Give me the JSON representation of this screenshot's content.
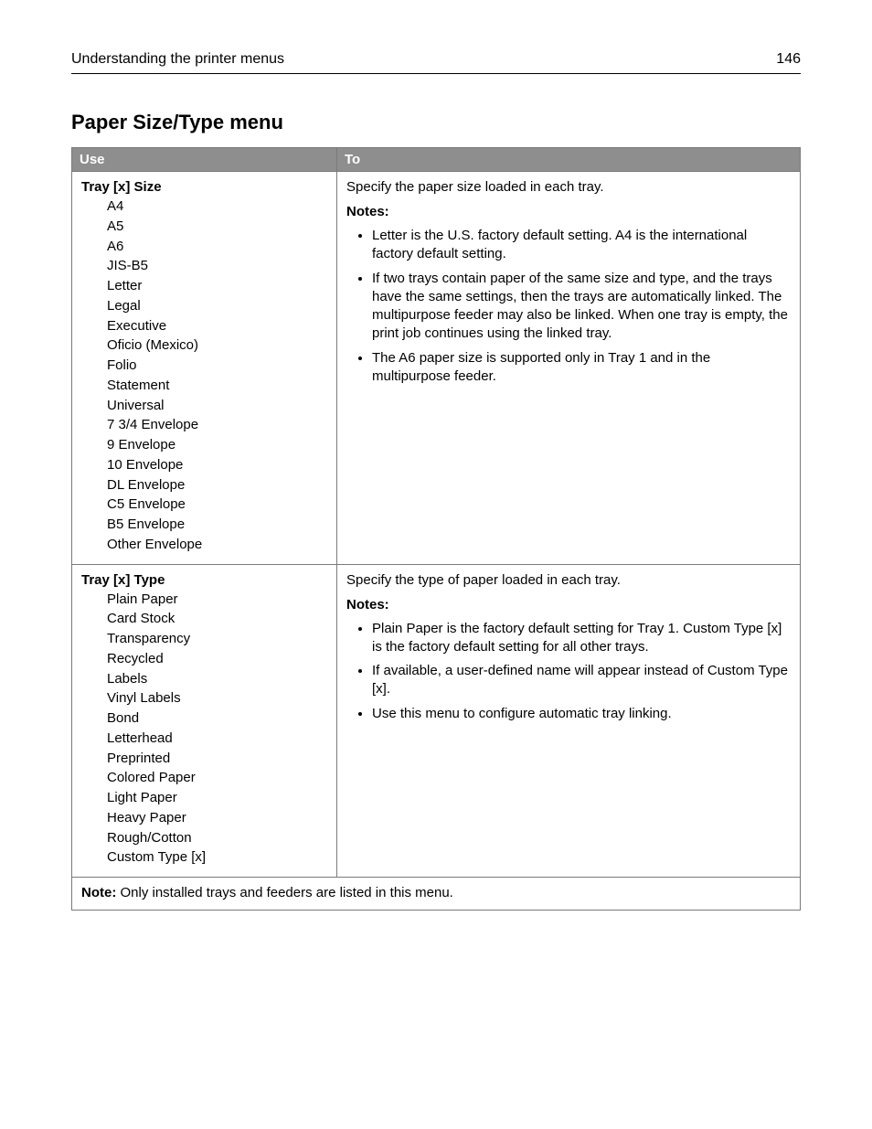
{
  "header": {
    "title": "Understanding the printer menus",
    "page_number": "146"
  },
  "section": {
    "title": "Paper Size/Type menu"
  },
  "table": {
    "columns": {
      "use": "Use",
      "to": "To"
    },
    "rows": [
      {
        "use_heading": "Tray [x] Size",
        "options": [
          "A4",
          "A5",
          "A6",
          "JIS-B5",
          "Letter",
          "Legal",
          "Executive",
          "Oficio (Mexico)",
          "Folio",
          "Statement",
          "Universal",
          "7 3/4 Envelope",
          "9 Envelope",
          "10 Envelope",
          "DL Envelope",
          "C5 Envelope",
          "B5 Envelope",
          "Other Envelope"
        ],
        "to_lead": "Specify the paper size loaded in each tray.",
        "notes_label": "Notes:",
        "notes": [
          "Letter is the U.S. factory default setting. A4 is the international factory default setting.",
          "If two trays contain paper of the same size and type, and the trays have the same settings, then the trays are automatically linked. The multipurpose feeder may also be linked. When one tray is empty, the print job continues using the linked tray.",
          "The A6 paper size is supported only in Tray 1 and in the multipurpose feeder."
        ]
      },
      {
        "use_heading": "Tray [x] Type",
        "options": [
          "Plain Paper",
          "Card Stock",
          "Transparency",
          "Recycled",
          "Labels",
          "Vinyl Labels",
          "Bond",
          "Letterhead",
          "Preprinted",
          "Colored Paper",
          "Light Paper",
          "Heavy Paper",
          "Rough/Cotton",
          "Custom Type [x]"
        ],
        "to_lead": "Specify the type of paper loaded in each tray.",
        "notes_label": "Notes:",
        "notes": [
          "Plain Paper is the factory default setting for Tray 1. Custom Type [x] is the factory default setting for all other trays.",
          "If available, a user-defined name will appear instead of Custom Type [x].",
          "Use this menu to configure automatic tray linking."
        ]
      }
    ],
    "footnote": {
      "label": "Note:",
      "text": " Only installed trays and feeders are listed in this menu."
    }
  }
}
